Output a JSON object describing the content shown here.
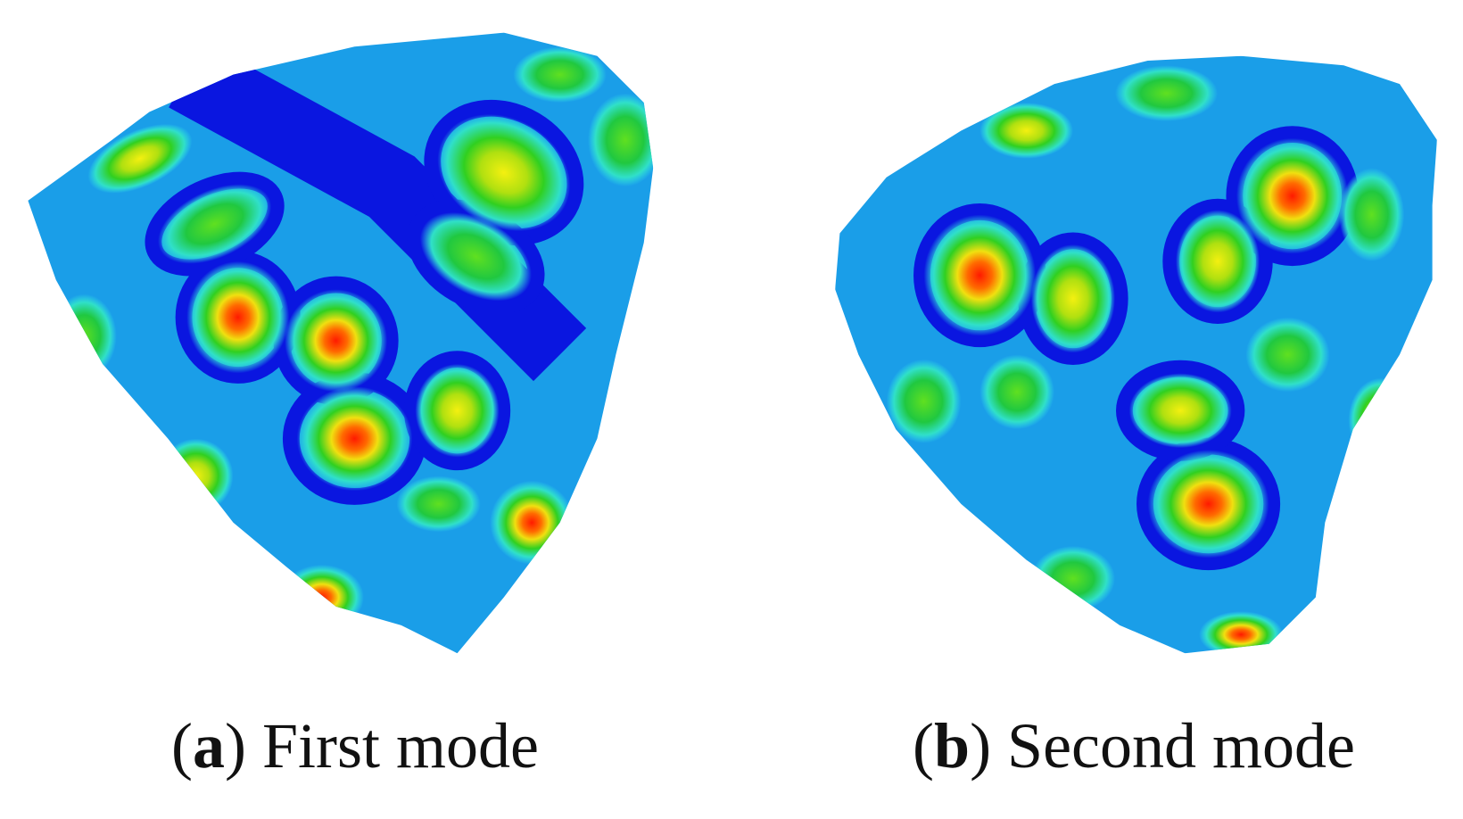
{
  "panels": [
    {
      "caption": [
        "(",
        "a",
        ")",
        "First mode"
      ]
    },
    {
      "caption": [
        "(",
        "b",
        ")",
        "Second mode"
      ]
    }
  ]
}
